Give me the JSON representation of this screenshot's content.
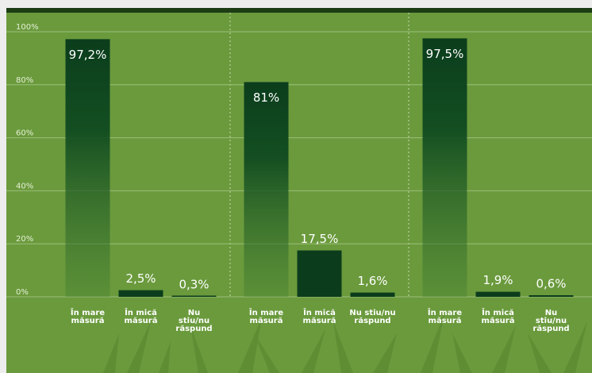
{
  "chart_data": [
    {
      "type": "bar",
      "color": "#0b3d1c",
      "categories": [
        [
          "În mare",
          "măsură"
        ],
        [
          "În mică",
          "măsură"
        ],
        [
          "Nu",
          "stiu/nu",
          "răspund"
        ]
      ],
      "values": [
        97.2,
        2.5,
        0.3
      ],
      "value_labels": [
        "97,2%",
        "2,5%",
        "0,3%"
      ],
      "ylim": [
        0,
        100
      ],
      "yticks": [
        {
          "value": 0,
          "label": "0%"
        },
        {
          "value": 20,
          "label": "20%"
        },
        {
          "value": 40,
          "label": "40%"
        },
        {
          "value": 60,
          "label": "60%"
        },
        {
          "value": 80,
          "label": "80%"
        },
        {
          "value": 100,
          "label": "100%"
        }
      ],
      "grid": true
    },
    {
      "type": "bar",
      "color": "#0b3d1c",
      "categories": [
        [
          "În mare",
          "măsură"
        ],
        [
          "În mică",
          "măsură"
        ],
        [
          "Nu stiu/nu",
          "răspund"
        ]
      ],
      "values": [
        81,
        17.5,
        1.6
      ],
      "value_labels": [
        "81%",
        "17,5%",
        "1,6%"
      ],
      "ylim": [
        0,
        100
      ]
    },
    {
      "type": "bar",
      "color": "#0b3d1c",
      "categories": [
        [
          "În mare",
          "măsură"
        ],
        [
          "În mică",
          "măsură"
        ],
        [
          "Nu",
          "stiu/nu",
          "răspund"
        ]
      ],
      "values": [
        97.5,
        1.9,
        0.6
      ],
      "value_labels": [
        "97,5%",
        "1,9%",
        "0,6%"
      ],
      "ylim": [
        0,
        100
      ]
    }
  ]
}
